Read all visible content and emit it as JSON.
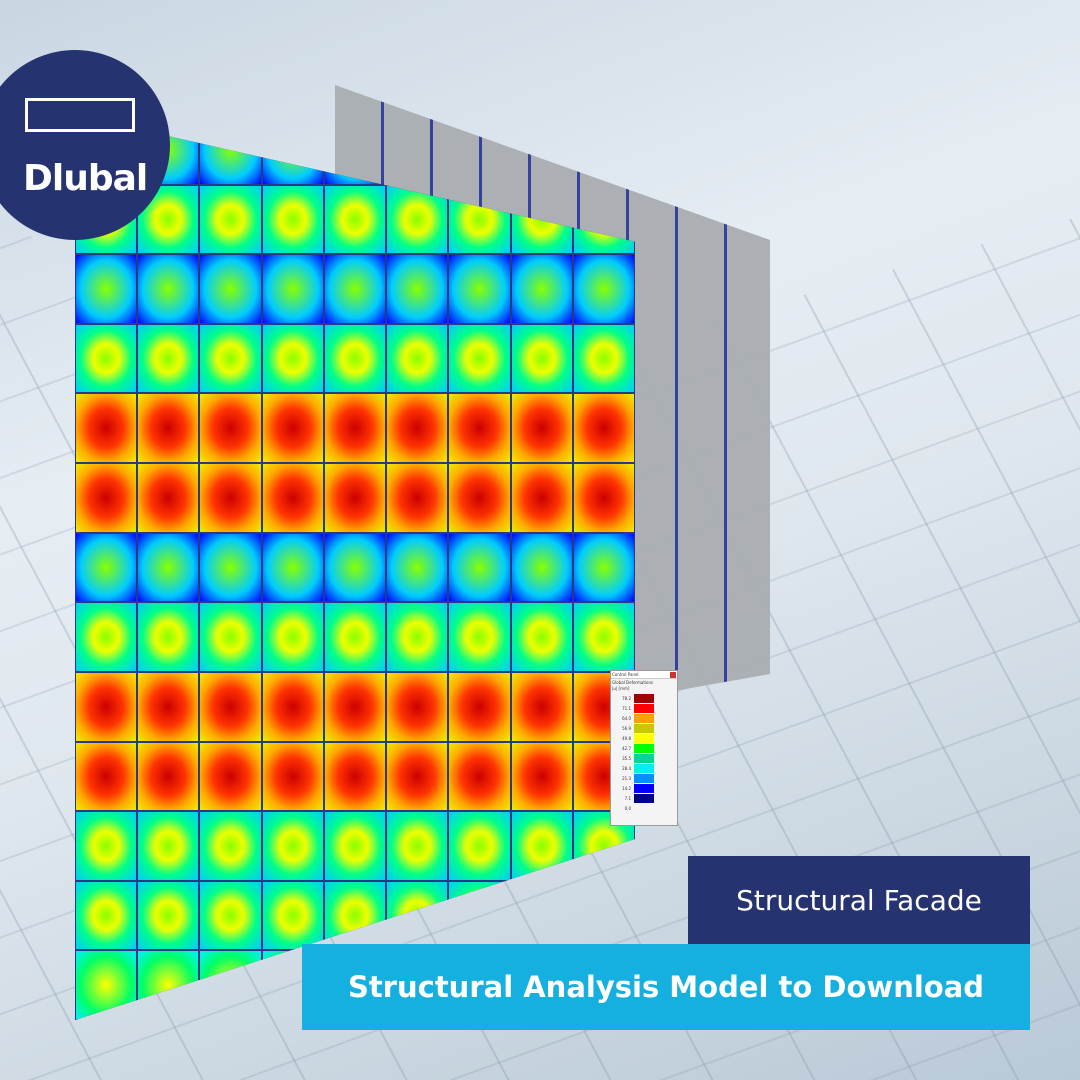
{
  "logo": {
    "text": "Dlubal"
  },
  "control_panel": {
    "title": "Control Panel",
    "result": "Global Deformations",
    "unit": "|u| [mm]",
    "legend": [
      {
        "v": "78.2",
        "c": "#a00000"
      },
      {
        "v": "71.1",
        "c": "#ff0000"
      },
      {
        "v": "64.0",
        "c": "#ffa000"
      },
      {
        "v": "56.9",
        "c": "#c8c800"
      },
      {
        "v": "49.8",
        "c": "#ffff00"
      },
      {
        "v": "42.7",
        "c": "#00ff00"
      },
      {
        "v": "35.5",
        "c": "#00d890"
      },
      {
        "v": "28.4",
        "c": "#00f0f0"
      },
      {
        "v": "21.3",
        "c": "#0090ff"
      },
      {
        "v": "14.2",
        "c": "#0000ff"
      },
      {
        "v": "7.1",
        "c": "#000090"
      },
      {
        "v": "0.0",
        "c": ""
      }
    ]
  },
  "banner": {
    "title": "Structural Facade",
    "subtitle": "Structural Analysis Model to Download"
  },
  "colors": {
    "navy": "#253370",
    "cyan": "#15b0e0"
  }
}
